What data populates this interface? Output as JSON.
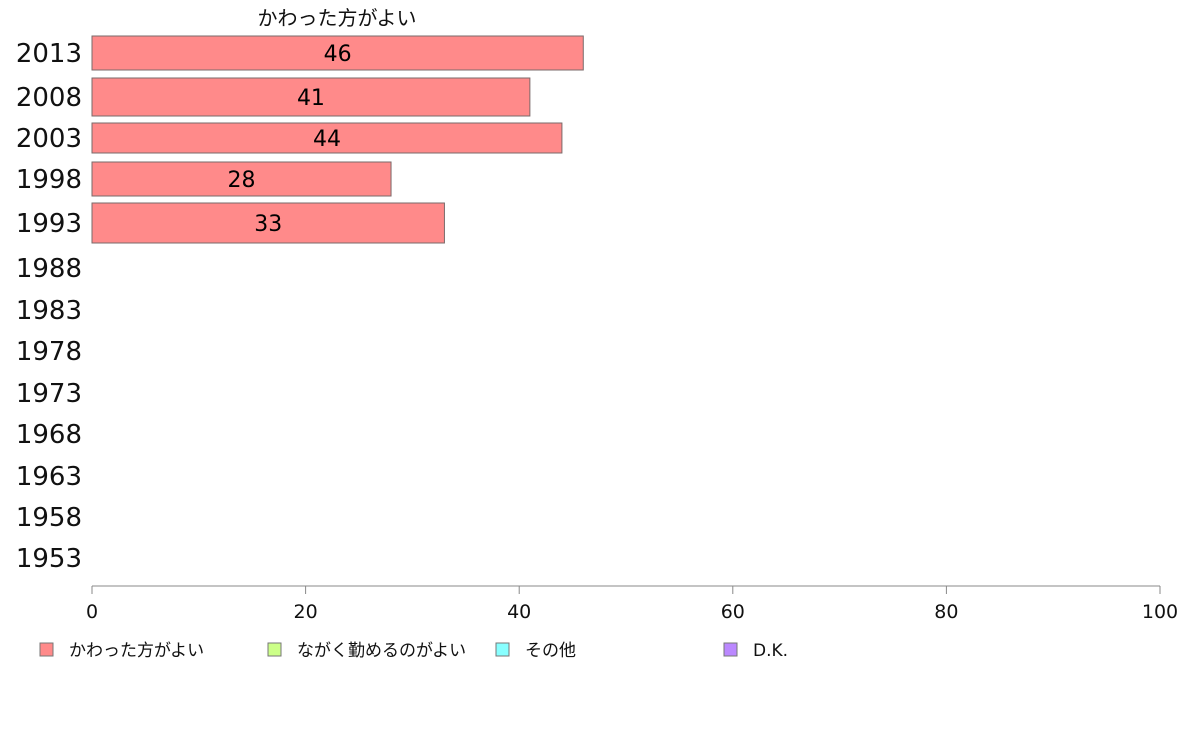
{
  "chart_data": {
    "type": "bar",
    "orientation": "horizontal",
    "categories": [
      "2013",
      "2008",
      "2003",
      "1998",
      "1993",
      "1988",
      "1983",
      "1978",
      "1973",
      "1968",
      "1963",
      "1958",
      "1953"
    ],
    "series": [
      {
        "name": "かわった方がよい",
        "color": "#ff8a8a",
        "values": [
          46,
          41,
          44,
          28,
          33,
          null,
          null,
          null,
          null,
          null,
          null,
          null,
          null
        ],
        "labels": [
          "46",
          "41",
          "44",
          "28",
          "33",
          "",
          "",
          "",
          "",
          "",
          "",
          "",
          ""
        ]
      }
    ],
    "xlim": [
      0,
      100
    ],
    "xticks": [
      "0",
      "20",
      "40",
      "60",
      "80",
      "100"
    ],
    "grid": false,
    "legend": {
      "position": "bottom",
      "items": [
        {
          "label": "かわった方がよい",
          "color": "#ff8a8a"
        },
        {
          "label": "ながく勤めるのがよい",
          "color": "#ccff88"
        },
        {
          "label": "その他",
          "color": "#88ffff"
        },
        {
          "label": "D.K.",
          "color": "#bb88ff"
        }
      ]
    }
  }
}
